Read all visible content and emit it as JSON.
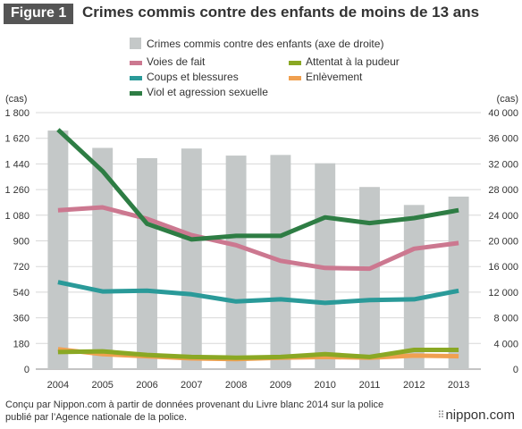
{
  "header": {
    "badge": "Figure 1",
    "title": "Crimes commis contre des enfants de moins de 13 ans"
  },
  "chart_data": {
    "type": "bar+line",
    "categories": [
      "2004",
      "2005",
      "2006",
      "2007",
      "2008",
      "2009",
      "2010",
      "2011",
      "2012",
      "2013"
    ],
    "bar_series": {
      "name": "Crimes commis contre des enfants (axe de droite)",
      "axis": "right",
      "color": "#c4c8c8",
      "values": [
        37200,
        34500,
        32900,
        34400,
        33300,
        33400,
        32100,
        28400,
        25600,
        26900
      ]
    },
    "series": [
      {
        "name": "Voies de fait",
        "axis": "left",
        "color": "#cc7890",
        "values": [
          1115,
          1135,
          1055,
          940,
          870,
          760,
          710,
          705,
          845,
          885
        ]
      },
      {
        "name": "Coups et blessures",
        "axis": "left",
        "color": "#2a9a99",
        "values": [
          610,
          545,
          550,
          525,
          475,
          490,
          465,
          485,
          490,
          550
        ]
      },
      {
        "name": "Viol et agression sexuelle",
        "axis": "left",
        "color": "#2e7d44",
        "values": [
          1680,
          1390,
          1020,
          910,
          935,
          935,
          1065,
          1025,
          1060,
          1115
        ]
      },
      {
        "name": "Attentat à la pudeur",
        "axis": "left",
        "color": "#8aa824",
        "values": [
          120,
          125,
          100,
          85,
          80,
          85,
          105,
          85,
          135,
          135
        ]
      },
      {
        "name": "Enlèvement",
        "axis": "left",
        "color": "#f0a050",
        "values": [
          140,
          105,
          90,
          75,
          70,
          80,
          85,
          80,
          95,
          90
        ]
      }
    ],
    "left_axis": {
      "label": "(cas)",
      "min": 0,
      "max": 1800,
      "ticks": [
        "0",
        "180",
        "360",
        "540",
        "720",
        "900",
        "1 080",
        "1 260",
        "1 440",
        "1 620",
        "1 800"
      ]
    },
    "right_axis": {
      "label": "(cas)",
      "min": 0,
      "max": 40000,
      "ticks": [
        "0",
        "4 000",
        "8 000",
        "12 000",
        "16 000",
        "20 000",
        "24 000",
        "28 000",
        "32 000",
        "36 000",
        "40 000"
      ]
    },
    "grid": true,
    "legend": "top"
  },
  "legend": {
    "bar_label": "Crimes commis contre des enfants (axe de droite)",
    "items": [
      "Voies de fait",
      "Attentat à la pudeur",
      "Coups et blessures",
      "Enlèvement",
      "Viol et agression sexuelle"
    ]
  },
  "footer": {
    "source": "Conçu par Nippon.com à partir de données provenant du Livre blanc 2014 sur la police publié par l’Agence nationale de la police.",
    "brand": "nippon.com"
  }
}
